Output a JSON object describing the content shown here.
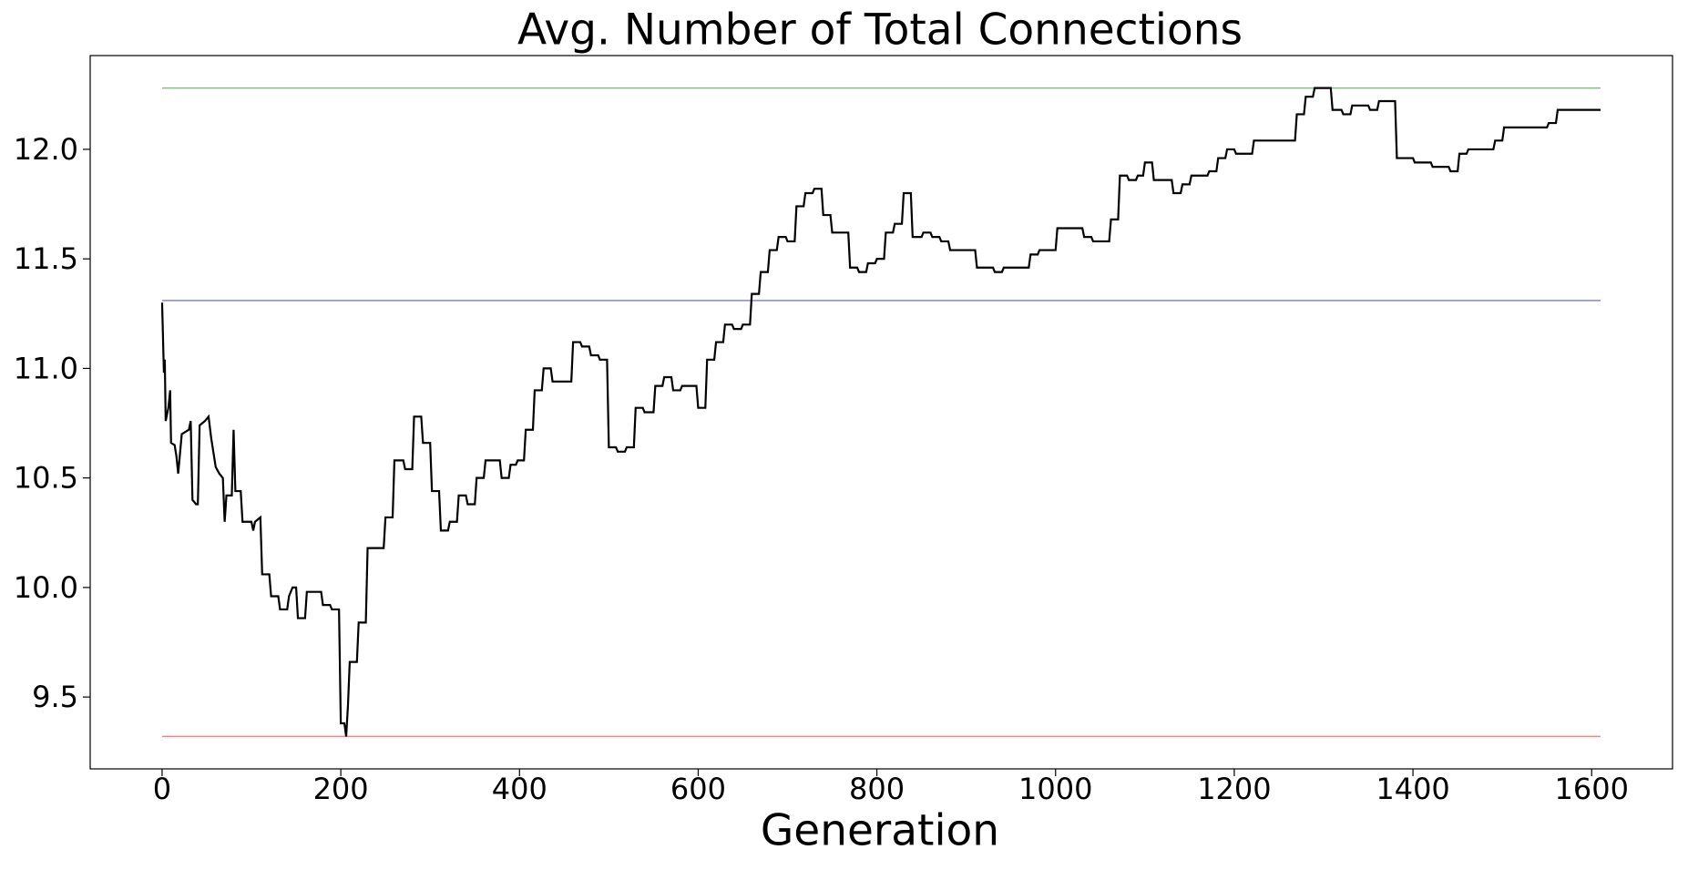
{
  "chart_data": {
    "type": "line",
    "title": "Avg. Number of Total Connections",
    "x_label": "Generation",
    "xlim": [
      -80.5,
      1690.5
    ],
    "xticks": [
      0,
      200,
      400,
      600,
      800,
      1000,
      1200,
      1400,
      1600
    ],
    "ylim": [
      9.172,
      12.428
    ],
    "yticks": [
      9.5,
      {
        "value": 10,
        "label": "10.0"
      },
      10.5,
      {
        "value": 11,
        "label": "11.0"
      },
      11.5,
      {
        "value": 12,
        "label": "12.0"
      }
    ],
    "grid": false,
    "series": [
      {
        "color": "#80c080",
        "x": [
          0,
          1610
        ],
        "values": [
          12.28,
          12.28
        ]
      },
      {
        "color": "#8080ff",
        "x": [
          0,
          1610
        ],
        "values": [
          11.31,
          11.31
        ]
      },
      {
        "color": "#ff8080",
        "x": [
          0,
          1610
        ],
        "values": [
          9.32,
          9.32
        ]
      },
      {
        "color": "#000000",
        "x": [
          0,
          2,
          3,
          4,
          7,
          9,
          10,
          14,
          16,
          18,
          22,
          30,
          32,
          34,
          38,
          40,
          42,
          48,
          52,
          55,
          60,
          64,
          68,
          70,
          72,
          78,
          80,
          82,
          88,
          90,
          100,
          102,
          104,
          110,
          112,
          120,
          122,
          130,
          132,
          140,
          142,
          146,
          150,
          152,
          160,
          162,
          178,
          180,
          188,
          190,
          198,
          200,
          204,
          206,
          208,
          210,
          218,
          220,
          228,
          230,
          248,
          250,
          258,
          260,
          270,
          272,
          280,
          282,
          290,
          292,
          300,
          302,
          310,
          312,
          320,
          322,
          330,
          332,
          340,
          342,
          350,
          352,
          360,
          362,
          378,
          380,
          388,
          390,
          396,
          398,
          405,
          407,
          415,
          417,
          425,
          427,
          435,
          437,
          458,
          460,
          468,
          470,
          478,
          480,
          488,
          490,
          498,
          500,
          508,
          510,
          518,
          520,
          528,
          530,
          538,
          540,
          550,
          552,
          560,
          562,
          570,
          572,
          580,
          582,
          598,
          600,
          608,
          610,
          618,
          620,
          628,
          630,
          638,
          640,
          648,
          650,
          658,
          660,
          668,
          670,
          678,
          680,
          688,
          690,
          698,
          700,
          708,
          710,
          718,
          720,
          728,
          730,
          738,
          740,
          748,
          750,
          768,
          770,
          778,
          780,
          788,
          790,
          798,
          800,
          808,
          810,
          818,
          820,
          828,
          830,
          838,
          840,
          850,
          852,
          860,
          862,
          870,
          872,
          880,
          882,
          910,
          912,
          930,
          932,
          940,
          942,
          970,
          972,
          980,
          982,
          1000,
          1002,
          1030,
          1032,
          1040,
          1042,
          1060,
          1062,
          1070,
          1072,
          1080,
          1082,
          1090,
          1092,
          1098,
          1100,
          1108,
          1110,
          1130,
          1132,
          1140,
          1142,
          1150,
          1152,
          1170,
          1172,
          1180,
          1182,
          1190,
          1192,
          1200,
          1202,
          1220,
          1222,
          1268,
          1270,
          1278,
          1280,
          1288,
          1290,
          1308,
          1310,
          1320,
          1322,
          1330,
          1332,
          1350,
          1352,
          1360,
          1362,
          1380,
          1382,
          1400,
          1402,
          1420,
          1422,
          1440,
          1442,
          1450,
          1452,
          1460,
          1462,
          1490,
          1492,
          1500,
          1502,
          1550,
          1552,
          1560,
          1562,
          1610
        ],
        "values": [
          11.3,
          10.98,
          11.04,
          10.76,
          10.82,
          10.9,
          10.66,
          10.65,
          10.6,
          10.52,
          10.7,
          10.72,
          10.76,
          10.4,
          10.38,
          10.38,
          10.74,
          10.76,
          10.78,
          10.68,
          10.55,
          10.52,
          10.5,
          10.3,
          10.42,
          10.42,
          10.72,
          10.44,
          10.44,
          10.3,
          10.3,
          10.26,
          10.3,
          10.32,
          10.06,
          10.06,
          9.96,
          9.96,
          9.9,
          9.9,
          9.96,
          10.0,
          10.0,
          9.86,
          9.86,
          9.98,
          9.98,
          9.92,
          9.92,
          9.9,
          9.9,
          9.38,
          9.38,
          9.32,
          9.46,
          9.66,
          9.66,
          9.84,
          9.84,
          10.18,
          10.18,
          10.32,
          10.32,
          10.58,
          10.58,
          10.54,
          10.54,
          10.78,
          10.78,
          10.66,
          10.66,
          10.44,
          10.44,
          10.26,
          10.26,
          10.3,
          10.3,
          10.42,
          10.42,
          10.38,
          10.38,
          10.5,
          10.5,
          10.58,
          10.58,
          10.5,
          10.5,
          10.56,
          10.56,
          10.58,
          10.58,
          10.72,
          10.72,
          10.9,
          10.9,
          11.0,
          11.0,
          10.94,
          10.94,
          11.12,
          11.12,
          11.1,
          11.1,
          11.06,
          11.06,
          11.04,
          11.04,
          10.64,
          10.64,
          10.62,
          10.62,
          10.64,
          10.64,
          10.82,
          10.82,
          10.8,
          10.8,
          10.92,
          10.92,
          10.96,
          10.96,
          10.9,
          10.9,
          10.92,
          10.92,
          10.82,
          10.82,
          11.04,
          11.04,
          11.12,
          11.12,
          11.2,
          11.2,
          11.18,
          11.18,
          11.2,
          11.2,
          11.34,
          11.34,
          11.44,
          11.44,
          11.54,
          11.54,
          11.6,
          11.6,
          11.58,
          11.58,
          11.74,
          11.74,
          11.8,
          11.8,
          11.82,
          11.82,
          11.7,
          11.7,
          11.62,
          11.62,
          11.46,
          11.46,
          11.44,
          11.44,
          11.48,
          11.48,
          11.5,
          11.5,
          11.62,
          11.62,
          11.66,
          11.66,
          11.8,
          11.8,
          11.6,
          11.6,
          11.62,
          11.62,
          11.6,
          11.6,
          11.58,
          11.58,
          11.54,
          11.54,
          11.46,
          11.46,
          11.44,
          11.44,
          11.46,
          11.46,
          11.52,
          11.52,
          11.54,
          11.54,
          11.64,
          11.64,
          11.6,
          11.6,
          11.58,
          11.58,
          11.68,
          11.68,
          11.88,
          11.88,
          11.86,
          11.86,
          11.88,
          11.88,
          11.94,
          11.94,
          11.86,
          11.86,
          11.8,
          11.8,
          11.84,
          11.84,
          11.88,
          11.88,
          11.9,
          11.9,
          11.96,
          11.96,
          12.0,
          12.0,
          11.98,
          11.98,
          12.04,
          12.04,
          12.16,
          12.16,
          12.24,
          12.24,
          12.28,
          12.28,
          12.18,
          12.18,
          12.16,
          12.16,
          12.2,
          12.2,
          12.18,
          12.18,
          12.22,
          12.22,
          11.96,
          11.96,
          11.94,
          11.94,
          11.92,
          11.92,
          11.9,
          11.9,
          11.98,
          11.98,
          12.0,
          12.0,
          12.04,
          12.04,
          12.1,
          12.1,
          12.12,
          12.12,
          12.18,
          12.18
        ]
      }
    ]
  }
}
